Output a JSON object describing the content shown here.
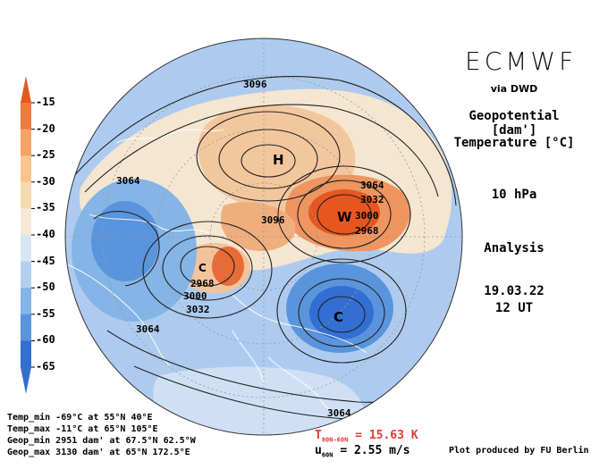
{
  "header": {
    "brand": "ECMWF",
    "via": "via DWD"
  },
  "info": {
    "variable_1": "Geopotential [dam']",
    "variable_2": "Temperature [°C]",
    "level": "10 hPa",
    "run_type": "Analysis",
    "date": "19.03.22",
    "time": "12 UT"
  },
  "colorbar": {
    "labels": [
      "-15",
      "-20",
      "-25",
      "-30",
      "-35",
      "-40",
      "-45",
      "-50",
      "-55",
      "-60",
      "-65"
    ],
    "colors": [
      "#e25a1e",
      "#ef7a3c",
      "#f5a366",
      "#f8c48f",
      "#f8d9b3",
      "#f6e9d6",
      "#d8e6f4",
      "#b3d0ef",
      "#85b4e6",
      "#5a94dc",
      "#336fd2"
    ]
  },
  "map_labels": {
    "contours": [
      "3096",
      "3064",
      "3064",
      "3032",
      "3000",
      "2968",
      "3096",
      "2968",
      "3000",
      "3032",
      "3064",
      "3064"
    ],
    "high": "H",
    "low_1": "C",
    "low_2": "C",
    "warm": "W"
  },
  "stats": {
    "temp_min": "Temp_min -69°C at 55°N 40°E",
    "temp_max": "Temp_max -11°C at 65°N 105°E",
    "geop_min": "Geop_min 2951 dam' at 67.5°N 62.5°W",
    "geop_max": "Geop_max 3130 dam' at 65°N 172.5°E"
  },
  "metrics": {
    "t_symbol": "T",
    "t_sub": "80N-60N",
    "t_value": "= 15.63 K",
    "u_symbol": "u",
    "u_sub": "60N",
    "u_value": "= 2.55 m/s"
  },
  "credit": "Plot produced by FU Berlin",
  "palette": {
    "ocean_cold": "#a9c9ee",
    "warm_red": "#e8561f",
    "metric_red": "#e53935"
  }
}
